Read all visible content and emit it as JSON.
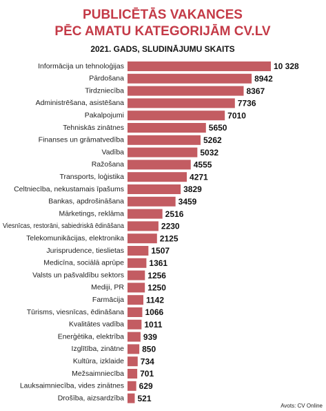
{
  "chart_data": {
    "type": "bar",
    "orientation": "horizontal",
    "title": [
      "PUBLICĒTĀS VAKANCES",
      "PĒC AMATU KATEGORIJĀM CV.LV"
    ],
    "subtitle": "2021. GADS, SLUDINĀJUMU SKAITS",
    "source": "Avots: CV Online",
    "color": "#c35c62",
    "categories": [
      "Informācija un tehnoloģijas",
      "Pārdošana",
      "Tirdzniecība",
      "Administrēšana, asistēšana",
      "Pakalpojumi",
      "Tehniskās zinātnes",
      "Finanses un grāmatvedība",
      "Vadība",
      "Ražošana",
      "Transports, loģistika",
      "Celtniecība, nekustamais īpašums",
      "Bankas, apdrošināšana",
      "Mārketings, reklāma",
      "Viesnīcas, restorāni, sabiedriskā ēdināšana",
      "Telekomunikācijas, elektronika",
      "Jurisprudence, tieslietas",
      "Medicīna, sociālā aprūpe",
      "Valsts un pašvaldību sektors",
      "Mediji, PR",
      "Farmācija",
      "Tūrisms, viesnīcas, ēdināšana",
      "Kvalitātes vadība",
      "Enerģētika, elektrība",
      "Izglītība, zinātne",
      "Kultūra, izklaide",
      "Mežsaimniecība",
      "Lauksaimniecība, vides zinātnes",
      "Drošība, aizsardzība"
    ],
    "values": [
      10328,
      8942,
      8367,
      7736,
      7010,
      5650,
      5262,
      5032,
      4555,
      4271,
      3829,
      3459,
      2516,
      2230,
      2125,
      1507,
      1361,
      1256,
      1250,
      1142,
      1066,
      1011,
      939,
      850,
      734,
      701,
      629,
      521
    ],
    "value_labels": [
      "10 328",
      "8942",
      "8367",
      "7736",
      "7010",
      "5650",
      "5262",
      "5032",
      "4555",
      "4271",
      "3829",
      "3459",
      "2516",
      "2230",
      "2125",
      "1507",
      "1361",
      "1256",
      "1250",
      "1142",
      "1066",
      "1011",
      "939",
      "850",
      "734",
      "701",
      "629",
      "521"
    ]
  }
}
